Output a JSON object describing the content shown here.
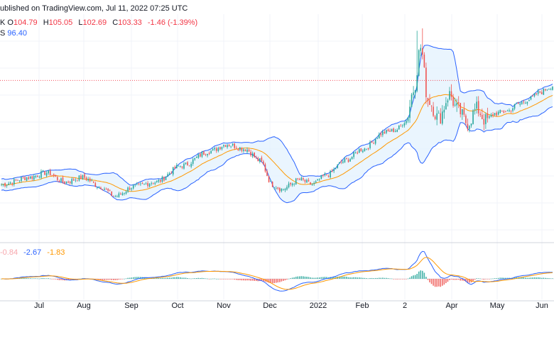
{
  "header": {
    "published": "ublished on TradingView.com, Jul 11, 2022 07:25 UTC",
    "ohlc_prefix": "K",
    "open_label": "O",
    "open": "104.79",
    "high_label": "H",
    "high": "105.05",
    "low_label": "L",
    "low": "102.69",
    "close_label": "C",
    "close": "103.33",
    "change": "-1.46 (-1.39%)",
    "ma_label": "S",
    "ma_value": "96.40"
  },
  "macd_header": {
    "hist": "-0.84",
    "macd": "-2.67",
    "signal": "-1.83"
  },
  "colors": {
    "up": "#26a69a",
    "down": "#ef5350",
    "band": "#2962ff",
    "band_fill": "#e3f2fd",
    "basis": "#ff9800",
    "macd_line": "#2962ff",
    "signal_line": "#ff9800",
    "hist_up": "#26a69a",
    "hist_down": "#ef5350",
    "price_line": "#f23645",
    "grid": "#f0f3fa",
    "axis_text": "#131722"
  },
  "chart_data": {
    "type": "candlestick",
    "x_ticks": [
      "Jul",
      "Aug",
      "Sep",
      "Oct",
      "Nov",
      "Dec",
      "2022",
      "Feb",
      "2",
      "Apr",
      "May",
      "Jun"
    ],
    "last_close": 103.33,
    "anchors": [
      {
        "i": 0,
        "v": 62
      },
      {
        "i": 15,
        "v": 65
      },
      {
        "i": 25,
        "v": 67
      },
      {
        "i": 35,
        "v": 63
      },
      {
        "i": 45,
        "v": 65
      },
      {
        "i": 55,
        "v": 61
      },
      {
        "i": 63,
        "v": 57
      },
      {
        "i": 73,
        "v": 61
      },
      {
        "i": 85,
        "v": 63
      },
      {
        "i": 100,
        "v": 70
      },
      {
        "i": 115,
        "v": 76
      },
      {
        "i": 125,
        "v": 79
      },
      {
        "i": 135,
        "v": 77
      },
      {
        "i": 143,
        "v": 72
      },
      {
        "i": 150,
        "v": 62
      },
      {
        "i": 155,
        "v": 60
      },
      {
        "i": 165,
        "v": 64
      },
      {
        "i": 172,
        "v": 62
      },
      {
        "i": 180,
        "v": 66
      },
      {
        "i": 190,
        "v": 72
      },
      {
        "i": 200,
        "v": 77
      },
      {
        "i": 212,
        "v": 84
      },
      {
        "i": 218,
        "v": 85
      },
      {
        "i": 224,
        "v": 89
      },
      {
        "i": 228,
        "v": 102
      },
      {
        "i": 232,
        "v": 120
      },
      {
        "i": 236,
        "v": 98
      },
      {
        "i": 242,
        "v": 90
      },
      {
        "i": 248,
        "v": 100
      },
      {
        "i": 252,
        "v": 94
      },
      {
        "i": 258,
        "v": 88
      },
      {
        "i": 263,
        "v": 94
      },
      {
        "i": 268,
        "v": 89
      },
      {
        "i": 273,
        "v": 92
      },
      {
        "i": 280,
        "v": 93
      },
      {
        "i": 286,
        "v": 96
      },
      {
        "i": 292,
        "v": 98
      },
      {
        "i": 298,
        "v": 101
      },
      {
        "i": 304,
        "v": 103.3
      }
    ]
  }
}
